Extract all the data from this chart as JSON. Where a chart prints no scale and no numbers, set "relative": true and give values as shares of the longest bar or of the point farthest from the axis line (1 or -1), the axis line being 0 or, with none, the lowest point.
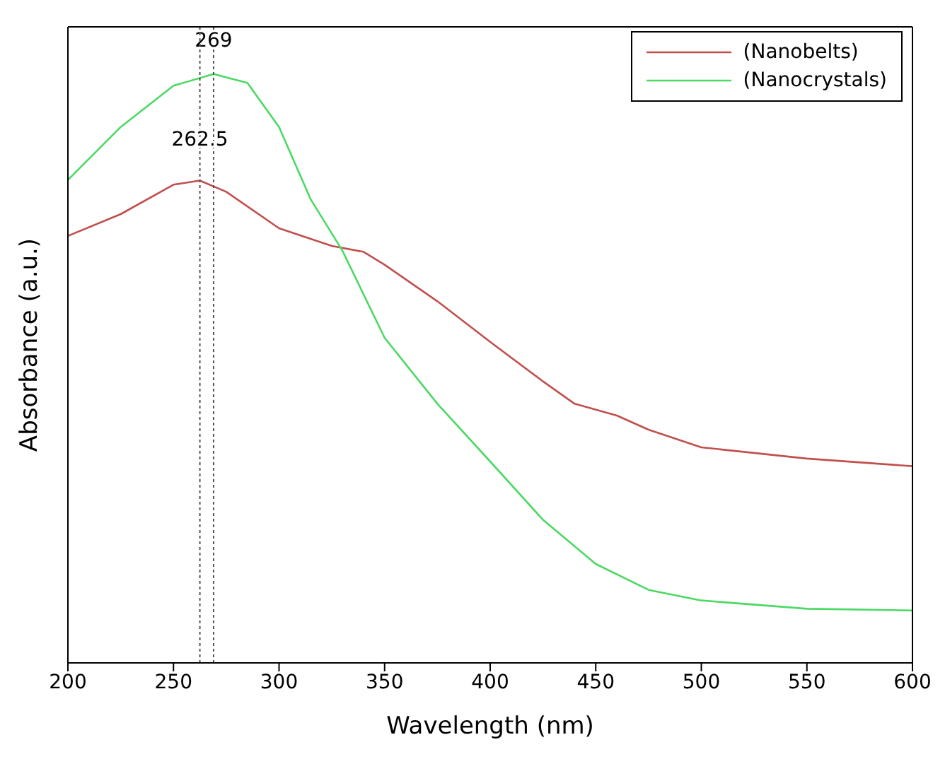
{
  "chart_data": {
    "type": "line",
    "xlabel": "Wavelength (nm)",
    "ylabel": "Absorbance (a.u.)",
    "relative": true,
    "xlim": [
      200,
      600
    ],
    "xticks": [
      200,
      250,
      300,
      350,
      400,
      450,
      500,
      550,
      600
    ],
    "legend": "top right",
    "marker": "none",
    "line_style": "solid",
    "series": [
      {
        "name": "(Nanobelts)",
        "color": "#c0504d",
        "x": [
          200,
          225,
          250,
          262.5,
          275,
          300,
          325,
          340,
          350,
          375,
          400,
          425,
          440,
          460,
          475,
          500,
          550,
          600
        ],
        "values": [
          0.725,
          0.762,
          0.812,
          0.819,
          0.8,
          0.738,
          0.708,
          0.698,
          0.676,
          0.614,
          0.545,
          0.478,
          0.44,
          0.42,
          0.396,
          0.366,
          0.347,
          0.334
        ]
      },
      {
        "name": "(Nanocrystals)",
        "color": "#4cd964",
        "x": [
          200,
          225,
          250,
          269,
          285,
          300,
          315,
          330,
          350,
          375,
          400,
          425,
          450,
          475,
          500,
          550,
          600
        ],
        "values": [
          0.82,
          0.91,
          0.98,
          1,
          0.985,
          0.91,
          0.787,
          0.7,
          0.552,
          0.44,
          0.342,
          0.243,
          0.168,
          0.124,
          0.106,
          0.092,
          0.089
        ]
      }
    ],
    "ref_lines": [
      {
        "axis": "x",
        "value": 269,
        "label": "269",
        "line_style": "dotted",
        "color": "#555555"
      },
      {
        "axis": "x",
        "value": 262.5,
        "label": "262.5",
        "line_style": "dotted",
        "color": "#555555"
      }
    ]
  }
}
